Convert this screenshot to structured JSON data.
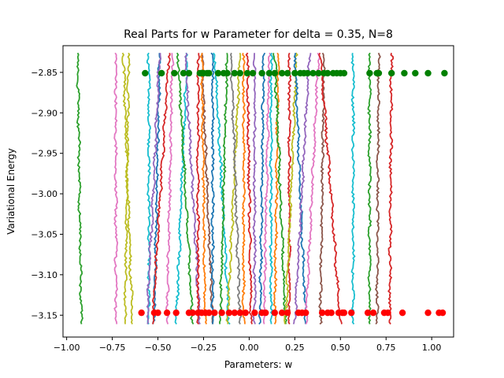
{
  "chart_data": {
    "type": "line",
    "title": "Real Parts for w Parameter for delta = 0.35, N=8",
    "xlabel": "Parameters: w",
    "ylabel": "Variational Energy",
    "xlim": [
      -1.02,
      1.12
    ],
    "ylim": [
      -3.177,
      -2.817
    ],
    "x_ticks": [
      -1.0,
      -0.75,
      -0.5,
      -0.25,
      0.0,
      0.25,
      0.5,
      0.75,
      1.0
    ],
    "x_tick_labels": [
      "−1.00",
      "−0.75",
      "−0.50",
      "−0.25",
      "0.00",
      "0.25",
      "0.50",
      "0.75",
      "1.00"
    ],
    "y_ticks": [
      -3.15,
      -3.1,
      -3.05,
      -3.0,
      -2.95,
      -2.9,
      -2.85
    ],
    "y_tick_labels": [
      "−3.15",
      "−3.10",
      "−3.05",
      "−3.00",
      "−2.95",
      "−2.90",
      "−2.85"
    ],
    "grid": false,
    "legend": "none",
    "trajectory_energy_range": [
      -3.161,
      -2.826
    ],
    "series": [
      {
        "color": "#2ca02c",
        "w_start": -0.94,
        "w_end": -0.92
      },
      {
        "color": "#bcbd22",
        "w_start": -0.66,
        "w_end": -0.68
      },
      {
        "color": "#e377c2",
        "w_start": -0.73,
        "w_end": -0.73
      },
      {
        "color": "#bcbd22",
        "w_start": -0.69,
        "w_end": -0.64
      },
      {
        "color": "#17becf",
        "w_start": -0.55,
        "w_end": -0.55
      },
      {
        "color": "#1f77b4",
        "w_start": -0.49,
        "w_end": -0.52
      },
      {
        "color": "#9467bd",
        "w_start": -0.49,
        "w_end": -0.56
      },
      {
        "color": "#d62728",
        "w_start": -0.44,
        "w_end": -0.53
      },
      {
        "color": "#e377c2",
        "w_start": -0.42,
        "w_end": -0.45
      },
      {
        "color": "#17becf",
        "w_start": -0.34,
        "w_end": -0.4
      },
      {
        "color": "#2ca02c",
        "w_start": -0.39,
        "w_end": -0.31
      },
      {
        "color": "#9467bd",
        "w_start": -0.35,
        "w_end": -0.27
      },
      {
        "color": "#d62728",
        "w_start": -0.28,
        "w_end": -0.28
      },
      {
        "color": "#8c564b",
        "w_start": -0.26,
        "w_end": -0.2
      },
      {
        "color": "#ff7f0e",
        "w_start": -0.26,
        "w_end": -0.24
      },
      {
        "color": "#1f77b4",
        "w_start": -0.2,
        "w_end": -0.2
      },
      {
        "color": "#17becf",
        "w_start": -0.19,
        "w_end": -0.11
      },
      {
        "color": "#2ca02c",
        "w_start": -0.12,
        "w_end": -0.16
      },
      {
        "color": "#bcbd22",
        "w_start": -0.05,
        "w_end": -0.12
      },
      {
        "color": "#7f7f7f",
        "w_start": -0.1,
        "w_end": -0.05
      },
      {
        "color": "#ff7f0e",
        "w_start": -0.03,
        "w_end": -0.03
      },
      {
        "color": "#d62728",
        "w_start": -0.01,
        "w_end": 0.01
      },
      {
        "color": "#9467bd",
        "w_start": 0.03,
        "w_end": 0.03
      },
      {
        "color": "#1f77b4",
        "w_start": 0.08,
        "w_end": 0.06
      },
      {
        "color": "#e377c2",
        "w_start": 0.11,
        "w_end": 0.08
      },
      {
        "color": "#17becf",
        "w_start": 0.12,
        "w_end": 0.12
      },
      {
        "color": "#ff7f0e",
        "w_start": 0.16,
        "w_end": 0.14
      },
      {
        "color": "#2ca02c",
        "w_start": 0.14,
        "w_end": 0.2
      },
      {
        "color": "#d62728",
        "w_start": 0.22,
        "w_end": 0.22
      },
      {
        "color": "#bcbd22",
        "w_start": 0.26,
        "w_end": 0.2
      },
      {
        "color": "#1f77b4",
        "w_start": 0.25,
        "w_end": 0.31
      },
      {
        "color": "#9467bd",
        "w_start": 0.33,
        "w_end": 0.25
      },
      {
        "color": "#e377c2",
        "w_start": 0.38,
        "w_end": 0.31
      },
      {
        "color": "#8c564b",
        "w_start": 0.41,
        "w_end": 0.39
      },
      {
        "color": "#d62728",
        "w_start": 0.39,
        "w_end": 0.5
      },
      {
        "color": "#17becf",
        "w_start": 0.57,
        "w_end": 0.57
      },
      {
        "color": "#2ca02c",
        "w_start": 0.66,
        "w_end": 0.66
      },
      {
        "color": "#8c564b",
        "w_start": 0.71,
        "w_end": 0.7
      },
      {
        "color": "#d62728",
        "w_start": 0.78,
        "w_end": 0.77
      }
    ],
    "points_green": {
      "color": "#008000",
      "y": -2.851,
      "x": [
        -0.57,
        -0.48,
        -0.41,
        -0.36,
        -0.33,
        -0.27,
        -0.26,
        -0.25,
        -0.23,
        -0.22,
        -0.17,
        -0.14,
        -0.12,
        -0.08,
        -0.05,
        -0.01,
        0.02,
        0.07,
        0.11,
        0.14,
        0.18,
        0.21,
        0.25,
        0.28,
        0.3,
        0.32,
        0.35,
        0.38,
        0.41,
        0.43,
        0.46,
        0.48,
        0.5,
        0.52,
        0.66,
        0.7,
        0.71,
        0.78,
        0.85,
        0.91,
        0.98,
        1.07
      ]
    },
    "points_red": {
      "color": "#ff0000",
      "y": -3.147,
      "x": [
        -0.59,
        -0.52,
        -0.5,
        -0.45,
        -0.4,
        -0.33,
        -0.31,
        -0.28,
        -0.26,
        -0.24,
        -0.22,
        -0.19,
        -0.15,
        -0.11,
        -0.08,
        -0.05,
        -0.02,
        0.03,
        0.07,
        0.09,
        0.14,
        0.18,
        0.21,
        0.27,
        0.29,
        0.31,
        0.4,
        0.43,
        0.45,
        0.49,
        0.51,
        0.52,
        0.56,
        0.65,
        0.68,
        0.74,
        0.76,
        0.84,
        0.98,
        1.04,
        1.06
      ]
    }
  }
}
